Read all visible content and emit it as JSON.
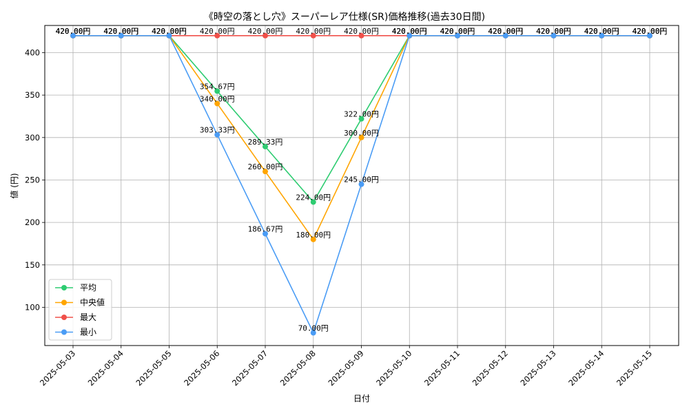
{
  "chart_data": {
    "type": "line",
    "title": "《時空の落とし穴》スーパーレア仕様(SR)価格推移(過去30日間)",
    "xlabel": "日付",
    "ylabel": "値 (円)",
    "categories": [
      "2025-05-03",
      "2025-05-04",
      "2025-05-05",
      "2025-05-06",
      "2025-05-07",
      "2025-05-08",
      "2025-05-09",
      "2025-05-10",
      "2025-05-11",
      "2025-05-12",
      "2025-05-13",
      "2025-05-14",
      "2025-05-15"
    ],
    "ylim": [
      55,
      432
    ],
    "yticks": [
      100,
      150,
      200,
      250,
      300,
      350,
      400
    ],
    "grid": true,
    "legend_position": "lower-left",
    "label_suffix": "円",
    "series": [
      {
        "name": "平均",
        "color": "#2ecc71",
        "values": [
          420,
          420,
          420,
          354.67,
          289.33,
          224,
          322,
          420,
          420,
          420,
          420,
          420,
          420
        ]
      },
      {
        "name": "中央値",
        "color": "#ffa500",
        "values": [
          420,
          420,
          420,
          340,
          260,
          180,
          300,
          420,
          420,
          420,
          420,
          420,
          420
        ]
      },
      {
        "name": "最大",
        "color": "#f0504a",
        "values": [
          420,
          420,
          420,
          420,
          420,
          420,
          420,
          420,
          420,
          420,
          420,
          420,
          420
        ]
      },
      {
        "name": "最小",
        "color": "#4a9cf5",
        "values": [
          420,
          420,
          420,
          303.33,
          186.67,
          70,
          245,
          420,
          420,
          420,
          420,
          420,
          420
        ]
      }
    ]
  }
}
